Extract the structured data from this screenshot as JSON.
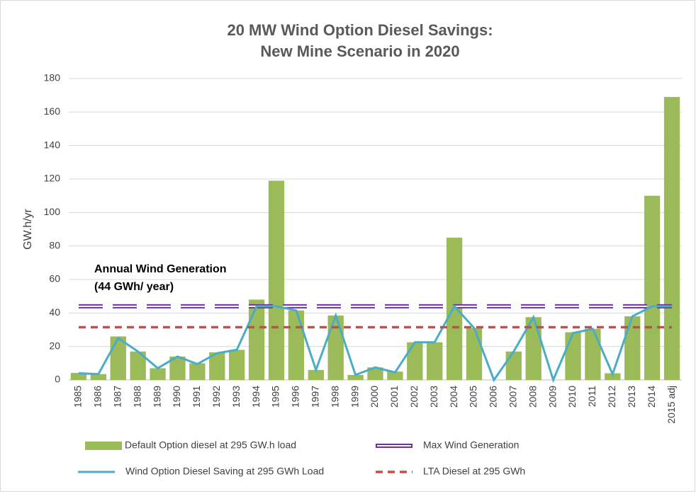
{
  "chart_data": {
    "type": "bar",
    "title": [
      "20 MW Wind Option Diesel Savings:",
      "New Mine Scenario in 2020"
    ],
    "ylabel": "GW.h/yr",
    "annotation": [
      "Annual Wind Generation",
      "(44 GWh/ year)"
    ],
    "categories": [
      "1985",
      "1986",
      "1987",
      "1988",
      "1989",
      "1990",
      "1991",
      "1992",
      "1993",
      "1994",
      "1995",
      "1996",
      "1997",
      "1998",
      "1999",
      "2000",
      "2001",
      "2002",
      "2003",
      "2004",
      "2005",
      "2006",
      "2007",
      "2008",
      "2009",
      "2010",
      "2011",
      "2012",
      "2013",
      "2014",
      "2015 adj"
    ],
    "series": [
      {
        "name": "Default Option diesel at 295 GW.h load",
        "type": "bar",
        "color": "#9bbb59",
        "values": [
          4.2,
          3.5,
          26,
          17,
          7,
          14,
          10,
          16.5,
          18,
          48,
          119,
          41.5,
          6,
          38.5,
          3,
          7.5,
          5,
          22.5,
          22.5,
          85,
          31,
          0,
          17,
          37.5,
          0,
          28.5,
          30.5,
          4,
          38,
          110,
          169
        ]
      },
      {
        "name": "Max Wind Generation",
        "type": "line",
        "style": "double",
        "color": "#7030a0",
        "values": [
          44,
          44,
          44,
          44,
          44,
          44,
          44,
          44,
          44,
          44,
          44,
          44,
          44,
          44,
          44,
          44,
          44,
          44,
          44,
          44,
          44,
          44,
          44,
          44,
          44,
          44,
          44,
          44,
          44,
          44,
          44
        ]
      },
      {
        "name": "Wind Option Diesel Saving at 295 GWh Load",
        "type": "line",
        "style": "solid",
        "color": "#4bacc6",
        "values": [
          4,
          3.5,
          25,
          17,
          7,
          14,
          9.5,
          16,
          18,
          44,
          44,
          41.5,
          6,
          38.5,
          3,
          7.5,
          4.5,
          22.5,
          22.5,
          44,
          31,
          0,
          17,
          37.5,
          0,
          28,
          30.5,
          3.5,
          38,
          44,
          44
        ]
      },
      {
        "name": "LTA Diesel at 295 GWh",
        "type": "line",
        "style": "dashed",
        "color": "#c0504d",
        "values": [
          31.5,
          31.5,
          31.5,
          31.5,
          31.5,
          31.5,
          31.5,
          31.5,
          31.5,
          31.5,
          31.5,
          31.5,
          31.5,
          31.5,
          31.5,
          31.5,
          31.5,
          31.5,
          31.5,
          31.5,
          31.5,
          31.5,
          31.5,
          31.5,
          31.5,
          31.5,
          31.5,
          31.5,
          31.5,
          31.5,
          31.5
        ]
      }
    ],
    "ylim": [
      0,
      180
    ],
    "yticks": [
      0,
      20,
      40,
      60,
      80,
      100,
      120,
      140,
      160,
      180
    ],
    "grid": true,
    "legend": "bottom"
  }
}
